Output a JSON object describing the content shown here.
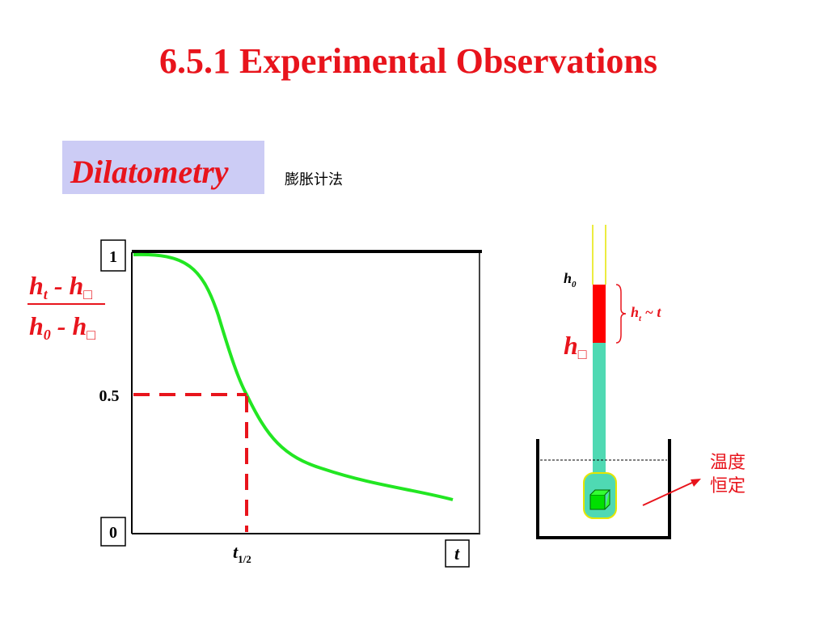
{
  "title": "6.5.1  Experimental Observations",
  "subtitle": "Dilatometry",
  "subtitle_note": "膨胀计法",
  "y_label": {
    "numerator": {
      "base": "h",
      "sub": "t",
      "rest": " - h",
      "sub2": "□"
    },
    "denominator": {
      "base": "h",
      "sub": "0",
      "rest": " - h",
      "sub2": "□"
    }
  },
  "y_ticks": [
    "1",
    "0.5",
    "0"
  ],
  "x_labels": {
    "half": {
      "base": "t",
      "sub": "1/2"
    },
    "end": "t"
  },
  "apparatus": {
    "h0": {
      "base": "h",
      "sub": "0"
    },
    "change": {
      "base": "h",
      "sub": "t",
      "rest": " ~ t"
    },
    "hinf": {
      "base": "h",
      "sub": "□"
    },
    "note": [
      "温度",
      "恒定"
    ]
  }
}
